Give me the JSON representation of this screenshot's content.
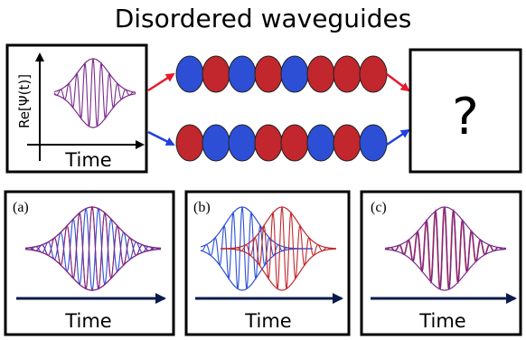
{
  "title": "Disordered waveguides",
  "input_panel": {
    "ylabel": "Re[Ψ(t)]",
    "xlabel": "Time"
  },
  "output_panel": {
    "label": "?"
  },
  "waveguides": {
    "top_sequence": [
      "blue",
      "red",
      "blue",
      "red",
      "blue",
      "red",
      "red",
      "red"
    ],
    "bottom_sequence": [
      "red",
      "blue",
      "blue",
      "red",
      "red",
      "blue",
      "red",
      "blue"
    ]
  },
  "result_panels": [
    {
      "label": "(a)",
      "xlabel": "Time"
    },
    {
      "label": "(b)",
      "xlabel": "Time"
    },
    {
      "label": "(c)",
      "xlabel": "Time"
    }
  ],
  "colors": {
    "red": "#c1272d",
    "blue": "#2c4fd6",
    "purple": "#7b2a8c",
    "arrow_red": "#e8192c",
    "arrow_blue": "#1f3fe0"
  }
}
